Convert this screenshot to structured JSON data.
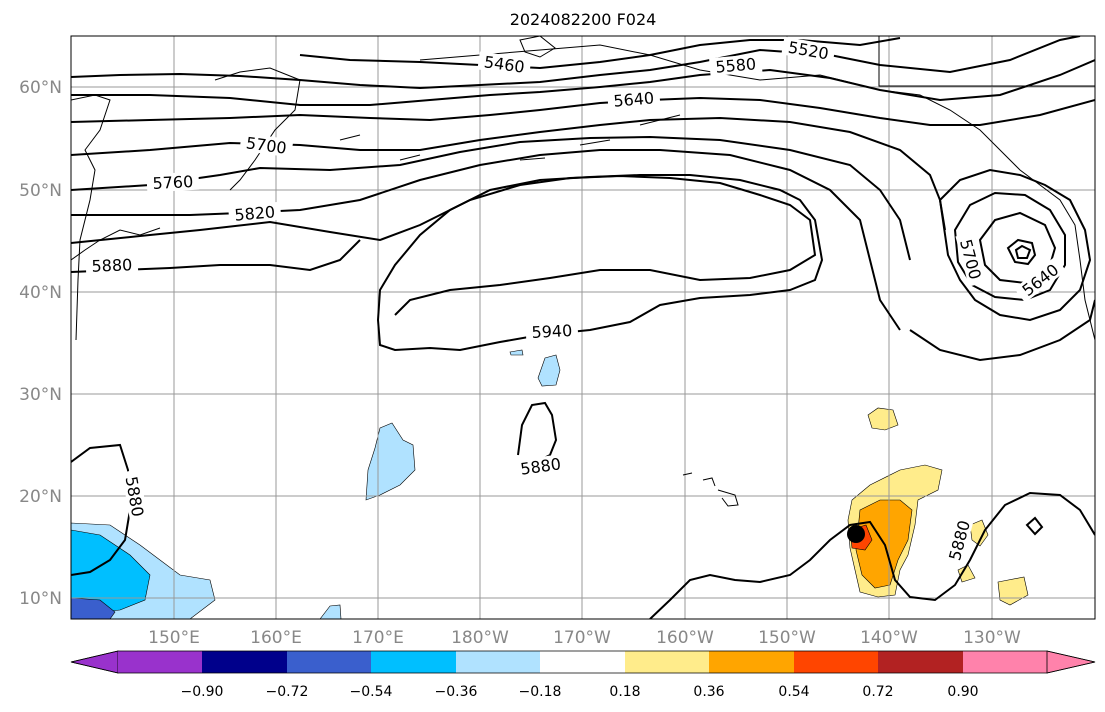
{
  "title": "2024082200 F024",
  "lat_labels": [
    "60°N",
    "50°N",
    "40°N",
    "30°N",
    "20°N",
    "10°N"
  ],
  "lon_labels": [
    "150°E",
    "160°E",
    "170°E",
    "180°W",
    "170°W",
    "160°W",
    "150°W",
    "140°W",
    "130°W"
  ],
  "contour_labels": [
    "5460",
    "5520",
    "5580",
    "5640",
    "5700",
    "5760",
    "5820",
    "5880",
    "5940",
    "5880",
    "5880",
    "5880",
    "5700",
    "5640"
  ],
  "colorbar": {
    "tick_labels": [
      "−0.90",
      "−0.72",
      "−0.54",
      "−0.36",
      "−0.18",
      "0.18",
      "0.36",
      "0.54",
      "0.72",
      "0.90"
    ],
    "colors": [
      "#9932cc",
      "#00008b",
      "#3a5fcd",
      "#00bfff",
      "#b0e2ff",
      "#ffffff",
      "#ffec8b",
      "#ffa500",
      "#ff4500",
      "#b22222",
      "#ff82ab"
    ]
  },
  "colors": {
    "grid": "#999999",
    "contour": "#000000",
    "axis_label": "#888888"
  }
}
